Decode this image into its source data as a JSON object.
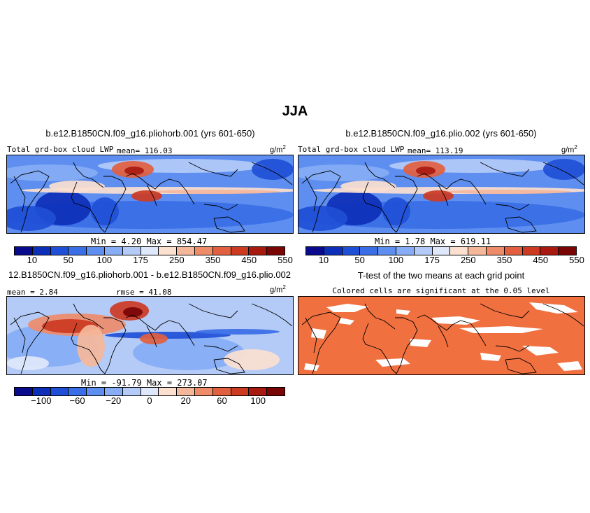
{
  "figure": {
    "title": "JJA"
  },
  "panels": [
    {
      "title": "b.e12.B1850CN.f09_g16.pliohorb.001 (yrs 601-650)",
      "left_label": "Total grd-box cloud LWP",
      "mean_label": "mean= 116.03",
      "units": "g/m",
      "units_exp": "2",
      "minmax_label": "Min =   4.20  Max = 854.47",
      "colorbar_ticks": [
        "10",
        "50",
        "100",
        "175",
        "250",
        "350",
        "450",
        "550"
      ]
    },
    {
      "title": "b.e12.B1850CN.f09_g16.plio.002 (yrs 601-650)",
      "left_label": "Total grd-box cloud LWP",
      "mean_label": "mean= 113.19",
      "units": "g/m",
      "units_exp": "2",
      "minmax_label": "Min =   1.78  Max = 619.11",
      "colorbar_ticks": [
        "10",
        "50",
        "100",
        "175",
        "250",
        "350",
        "450",
        "550"
      ]
    },
    {
      "title": "12.B1850CN.f09_g16.pliohorb.001 - b.e12.B1850CN.f09_g16.plio.002",
      "mean_label": "mean =   2.84",
      "rmse_label": "rmse =  41.08",
      "units": "g/m",
      "units_exp": "2",
      "minmax_label": "Min = -91.79  Max = 273.07",
      "colorbar_ticks": [
        "−100",
        "−60",
        "−20",
        "0",
        "20",
        "60",
        "100"
      ]
    },
    {
      "title": "T-test of the two means at each grid point",
      "subtitle": "Colored cells are significant at the 0.05 level"
    }
  ],
  "colors": {
    "abs_palette": [
      "#0a0a8c",
      "#0d2fb8",
      "#1f4fd6",
      "#3a6ee6",
      "#5d8ef0",
      "#86adf5",
      "#b4cbf8",
      "#dfe8fb",
      "#fbe0d0",
      "#f5b79a",
      "#ee8c6a",
      "#e2603f",
      "#cc3a22",
      "#a81a10",
      "#7a0505"
    ],
    "diff_palette": [
      "#0a0a8c",
      "#0d2fb8",
      "#1f4fd6",
      "#3a6ee6",
      "#5d8ef0",
      "#86adf5",
      "#b4cbf8",
      "#dfe8fb",
      "#fbe0d0",
      "#f5b79a",
      "#ee8c6a",
      "#e2603f",
      "#cc3a22",
      "#a81a10",
      "#7a0505"
    ],
    "significant": "#f07040",
    "land_outline": "#000000"
  },
  "chart_data": [
    {
      "type": "heatmap",
      "title": "b.e12.B1850CN.f09_g16.pliohorb.001 (yrs 601-650)",
      "variable": "Total grd-box cloud LWP",
      "units": "g/m2",
      "mean": 116.03,
      "min": 4.2,
      "max": 854.47,
      "contour_levels": [
        10,
        25,
        50,
        75,
        100,
        125,
        150,
        175,
        200,
        250,
        300,
        350,
        400,
        450,
        500,
        550
      ]
    },
    {
      "type": "heatmap",
      "title": "b.e12.B1850CN.f09_g16.plio.002 (yrs 601-650)",
      "variable": "Total grd-box cloud LWP",
      "units": "g/m2",
      "mean": 113.19,
      "min": 1.78,
      "max": 619.11,
      "contour_levels": [
        10,
        25,
        50,
        75,
        100,
        125,
        150,
        175,
        200,
        250,
        300,
        350,
        400,
        450,
        500,
        550
      ]
    },
    {
      "type": "heatmap",
      "title": "12.B1850CN.f09_g16.pliohorb.001 - b.e12.B1850CN.f09_g16.plio.002",
      "units": "g/m2",
      "mean": 2.84,
      "rmse": 41.08,
      "min": -91.79,
      "max": 273.07,
      "contour_levels": [
        -100,
        -80,
        -60,
        -40,
        -20,
        -10,
        0,
        10,
        20,
        40,
        60,
        80,
        100
      ]
    },
    {
      "type": "heatmap",
      "title": "T-test of the two means at each grid point",
      "significance_level": 0.05
    }
  ]
}
